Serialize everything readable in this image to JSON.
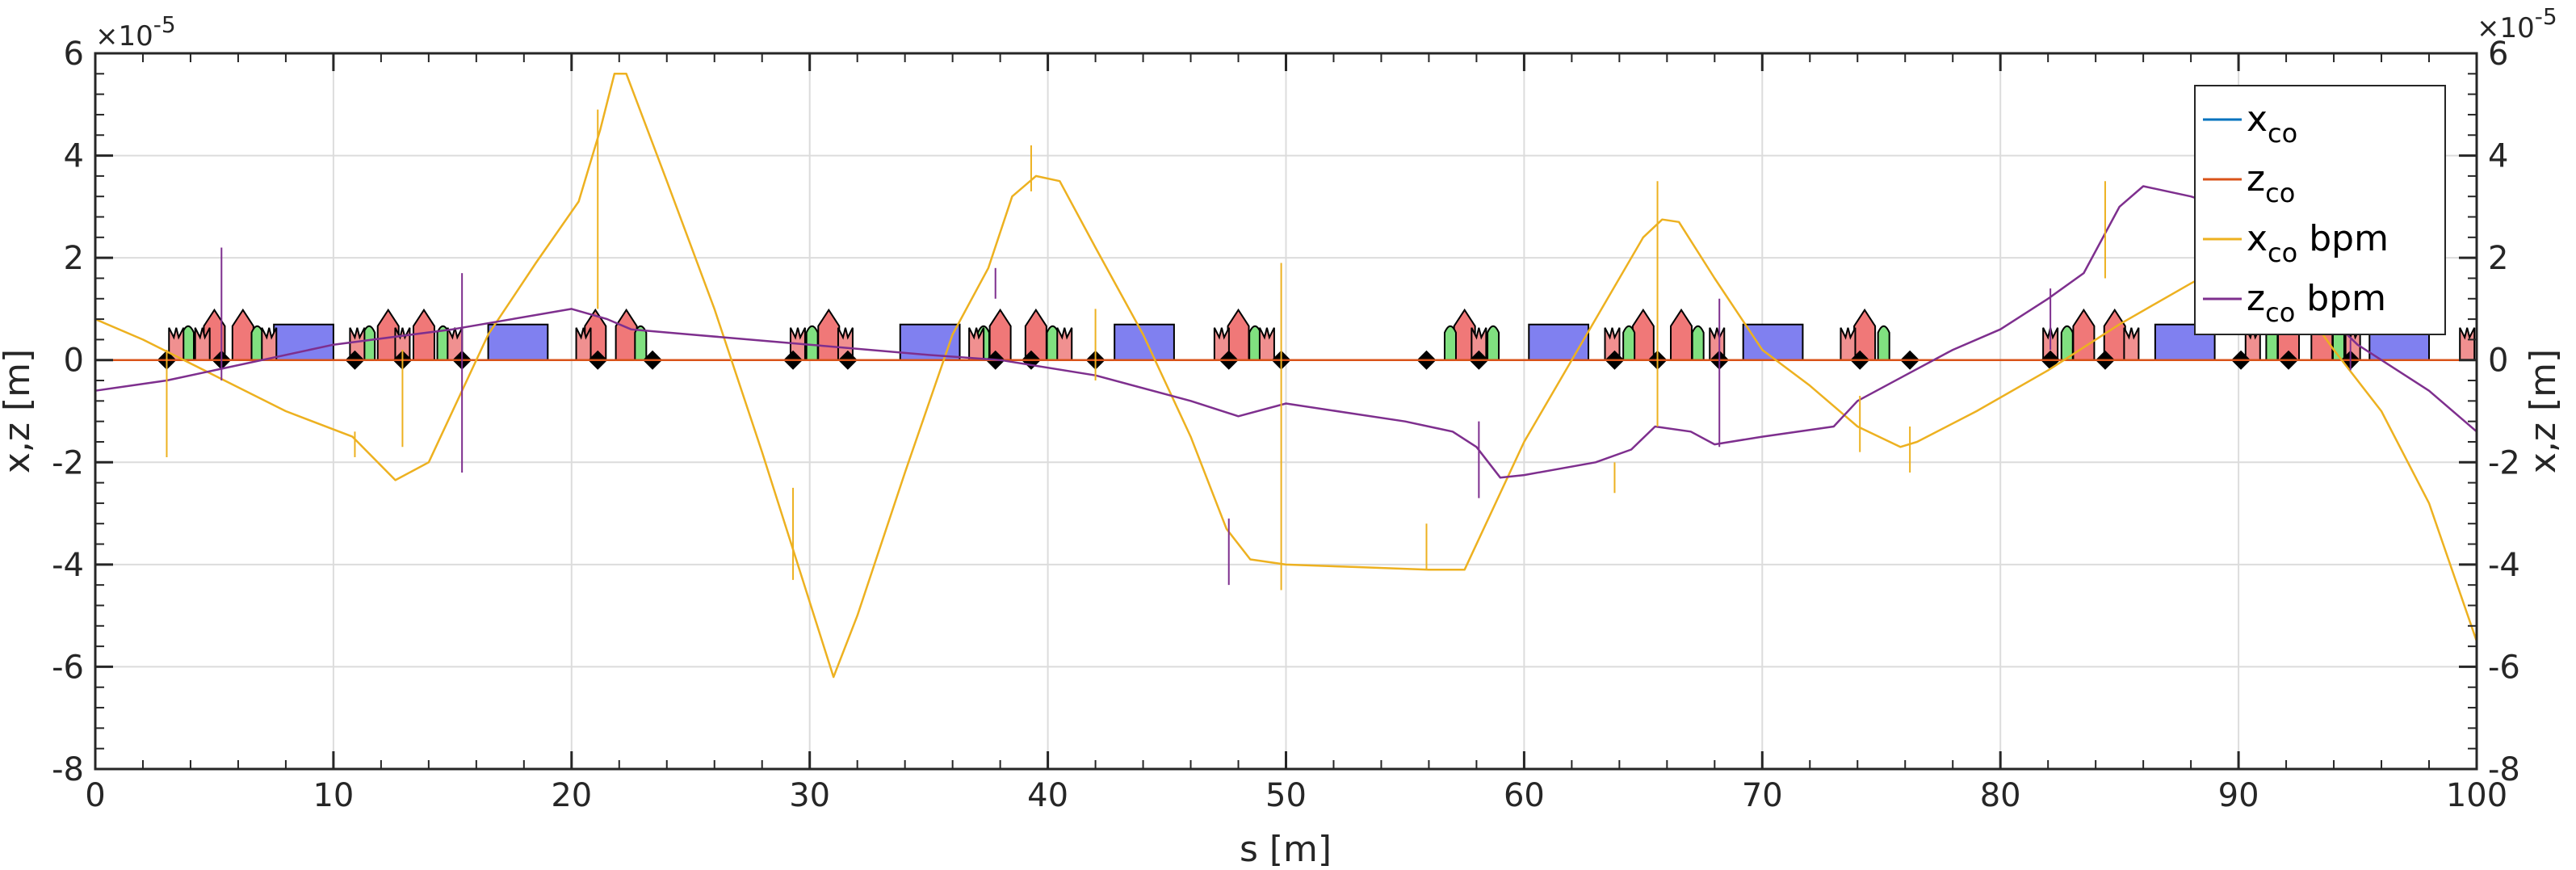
{
  "chart_data": {
    "type": "line",
    "title": "",
    "xlabel": "s [m]",
    "ylabel_left": "x,z [m]",
    "ylabel_right": "x,z [m]",
    "exponent_left": "×10",
    "exponent_right": "×10",
    "exponent_power": "-5",
    "xlim": [
      0,
      100
    ],
    "ylim": [
      -8,
      6
    ],
    "y_scale": 1e-05,
    "grid": true,
    "legend_position": "top-right",
    "x_ticks": [
      0,
      10,
      20,
      30,
      40,
      50,
      60,
      70,
      80,
      90,
      100
    ],
    "x_tick_labels": [
      "0",
      "10",
      "20",
      "30",
      "40",
      "50",
      "60",
      "70",
      "80",
      "90",
      "100"
    ],
    "y_ticks": [
      -8,
      -6,
      -4,
      -2,
      0,
      2,
      4,
      6
    ],
    "y_tick_labels": [
      "-8",
      "-6",
      "-4",
      "-2",
      "0",
      "2",
      "4",
      "6"
    ],
    "series": [
      {
        "name": "x_co",
        "legend_main": "x",
        "legend_sub": "co",
        "legend_suffix": "",
        "color": "#0072BD",
        "x": [
          0,
          100
        ],
        "y": [
          0,
          0
        ]
      },
      {
        "name": "z_co",
        "legend_main": "z",
        "legend_sub": "co",
        "legend_suffix": "",
        "color": "#D95319",
        "x": [
          0,
          100
        ],
        "y": [
          0,
          0
        ]
      },
      {
        "name": "x_co bpm",
        "legend_main": "x",
        "legend_sub": "co",
        "legend_suffix": " bpm",
        "color": "#EDB120",
        "x": [
          0,
          2,
          5,
          8,
          10.8,
          12.6,
          14,
          16.5,
          18.5,
          20.3,
          21.2,
          21.8,
          22.3,
          24,
          26,
          28,
          29.5,
          31,
          32,
          34,
          36,
          37.5,
          38.5,
          39.5,
          40.5,
          42,
          44,
          46,
          47.5,
          48.5,
          50,
          53,
          56,
          57.5,
          60,
          63,
          65,
          65.8,
          66.5,
          68,
          70,
          72,
          74,
          75.8,
          76.5,
          79,
          82,
          85,
          88,
          90,
          92,
          94,
          96,
          98,
          100
        ],
        "y": [
          0.8,
          0.4,
          -0.3,
          -1.0,
          -1.5,
          -2.35,
          -2.0,
          0.5,
          1.9,
          3.1,
          4.5,
          5.6,
          5.6,
          3.5,
          1.0,
          -1.8,
          -4.0,
          -6.2,
          -5.0,
          -2.2,
          0.5,
          1.8,
          3.2,
          3.6,
          3.5,
          2.2,
          0.5,
          -1.5,
          -3.3,
          -3.9,
          -4.0,
          -4.05,
          -4.1,
          -4.1,
          -1.6,
          0.8,
          2.4,
          2.75,
          2.7,
          1.6,
          0.2,
          -0.5,
          -1.3,
          -1.7,
          -1.6,
          -1.0,
          -0.2,
          0.7,
          1.5,
          2.0,
          1.5,
          0.2,
          -1.0,
          -2.8,
          -5.5
        ]
      },
      {
        "name": "z_co bpm",
        "legend_main": "z",
        "legend_sub": "co",
        "legend_suffix": " bpm",
        "color": "#7E2F8E",
        "x": [
          0,
          3,
          5,
          10,
          15,
          20,
          21.5,
          22.5,
          25,
          30,
          35,
          38,
          42,
          46,
          48,
          50,
          55,
          57,
          58,
          59,
          60,
          63,
          64.5,
          65.5,
          67,
          68,
          70,
          73,
          74,
          76,
          78,
          80,
          82,
          83.5,
          85,
          86,
          88,
          90,
          91,
          93,
          95,
          98,
          100
        ],
        "y": [
          -0.6,
          -0.4,
          -0.2,
          0.3,
          0.6,
          1.0,
          0.8,
          0.6,
          0.5,
          0.3,
          0.1,
          0.0,
          -0.3,
          -0.8,
          -1.1,
          -0.85,
          -1.2,
          -1.4,
          -1.7,
          -2.3,
          -2.25,
          -2.0,
          -1.75,
          -1.3,
          -1.4,
          -1.65,
          -1.5,
          -1.3,
          -0.8,
          -0.3,
          0.2,
          0.6,
          1.2,
          1.7,
          3.0,
          3.4,
          3.2,
          2.9,
          2.5,
          1.2,
          0.3,
          -0.6,
          -1.4
        ]
      }
    ],
    "spikes": [
      {
        "s": 3.0,
        "up": 0.2,
        "down": -1.9
      },
      {
        "s": 5.3,
        "up": 2.2,
        "down": -0.4
      },
      {
        "s": 10.9,
        "up": -1.4,
        "down": -1.9
      },
      {
        "s": 12.9,
        "up": 0.2,
        "down": -1.7
      },
      {
        "s": 15.4,
        "up": 1.7,
        "down": -2.2
      },
      {
        "s": 21.1,
        "up": 4.9,
        "down": 1.0
      },
      {
        "s": 29.3,
        "up": -2.5,
        "down": -4.3
      },
      {
        "s": 37.8,
        "up": 1.8,
        "down": 1.2
      },
      {
        "s": 39.3,
        "up": 4.2,
        "down": 3.3
      },
      {
        "s": 42.0,
        "up": 1.0,
        "down": -0.4
      },
      {
        "s": 47.6,
        "up": -3.1,
        "down": -4.4
      },
      {
        "s": 49.8,
        "up": 1.9,
        "down": -4.5
      },
      {
        "s": 55.9,
        "up": -3.2,
        "down": -4.1
      },
      {
        "s": 58.1,
        "up": -1.2,
        "down": -2.7
      },
      {
        "s": 63.8,
        "up": -2.0,
        "down": -2.6
      },
      {
        "s": 65.6,
        "up": 3.5,
        "down": -1.3
      },
      {
        "s": 68.2,
        "up": 1.2,
        "down": -1.7
      },
      {
        "s": 74.1,
        "up": -0.7,
        "down": -1.8
      },
      {
        "s": 76.2,
        "up": -1.3,
        "down": -2.2
      },
      {
        "s": 82.1,
        "up": 1.4,
        "down": 0.2
      },
      {
        "s": 84.4,
        "up": 3.5,
        "down": 1.6
      },
      {
        "s": 90.1,
        "up": 2.4,
        "down": 1.6
      },
      {
        "s": 94.7,
        "up": 0.4,
        "down": -0.2
      }
    ],
    "lattice": {
      "dipoles": [
        [
          7.5,
          10.0
        ],
        [
          16.5,
          19.0
        ],
        [
          33.8,
          36.3
        ],
        [
          42.8,
          45.3
        ],
        [
          60.2,
          62.7
        ],
        [
          69.2,
          71.7
        ],
        [
          86.5,
          89.0
        ],
        [
          95.5,
          98.0
        ]
      ],
      "quadrupoles": [
        5.0,
        6.2,
        12.3,
        13.8,
        21.0,
        22.3,
        30.8,
        38.0,
        39.5,
        48.0,
        57.5,
        65.0,
        66.6,
        74.3,
        83.5,
        84.8,
        92.1,
        93.5
      ],
      "sextupoles": [
        3.9,
        6.8,
        11.5,
        14.6,
        22.9,
        30.1,
        37.3,
        40.2,
        48.7,
        56.9,
        58.7,
        64.4,
        67.3,
        75.1,
        82.8,
        91.4,
        94.2
      ],
      "multipoles": [
        3.4,
        4.5,
        7.3,
        11.0,
        12.9,
        15.1,
        20.5,
        29.5,
        31.5,
        37.0,
        40.7,
        47.3,
        49.2,
        58.1,
        63.7,
        68.1,
        73.6,
        82.1,
        85.5,
        90.6,
        94.8,
        99.6
      ],
      "bpms": [
        3.0,
        5.3,
        10.9,
        12.9,
        15.4,
        21.1,
        23.4,
        29.3,
        31.6,
        37.8,
        39.3,
        42.0,
        47.6,
        49.8,
        55.9,
        58.1,
        63.8,
        65.6,
        68.2,
        74.1,
        76.2,
        82.1,
        84.4,
        90.1,
        92.1,
        94.7
      ]
    }
  }
}
